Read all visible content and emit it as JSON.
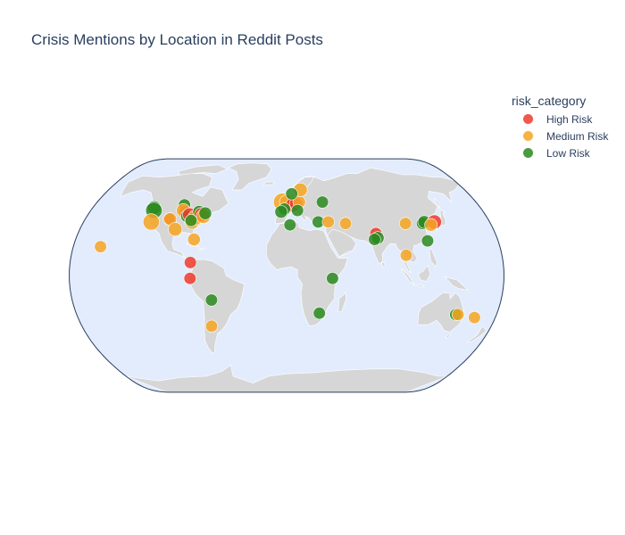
{
  "title": "Crisis Mentions by Location in Reddit Posts",
  "legend": {
    "title": "risk_category",
    "items": [
      {
        "label": "High Risk",
        "color": "#ef3b2c"
      },
      {
        "label": "Medium Risk",
        "color": "#f5a623"
      },
      {
        "label": "Low Risk",
        "color": "#2a8a1e"
      }
    ]
  },
  "colors": {
    "ocean": "#e3ecfd",
    "land": "#d6d6d6",
    "frame": "#2a3f5f"
  },
  "points": [
    {
      "lon": -123,
      "lat": 47,
      "risk": "Low Risk",
      "mentions": 8
    },
    {
      "lon": -122,
      "lat": 45,
      "risk": "Low Risk",
      "mentions": 14
    },
    {
      "lon": -120,
      "lat": 37,
      "risk": "Medium Risk",
      "mentions": 14
    },
    {
      "lon": -105,
      "lat": 39,
      "risk": "High Risk",
      "mentions": 5
    },
    {
      "lon": -104,
      "lat": 39,
      "risk": "Medium Risk",
      "mentions": 6
    },
    {
      "lon": -96,
      "lat": 49,
      "risk": "Low Risk",
      "mentions": 5
    },
    {
      "lon": -93,
      "lat": 44,
      "risk": "High Risk",
      "mentions": 6
    },
    {
      "lon": -97,
      "lat": 32,
      "risk": "Medium Risk",
      "mentions": 8
    },
    {
      "lon": -95,
      "lat": 45,
      "risk": "Medium Risk",
      "mentions": 8
    },
    {
      "lon": -90,
      "lat": 41,
      "risk": "Low Risk",
      "mentions": 5
    },
    {
      "lon": -88,
      "lat": 42,
      "risk": "High Risk",
      "mentions": 8
    },
    {
      "lon": -84,
      "lat": 37,
      "risk": "Medium Risk",
      "mentions": 9
    },
    {
      "lon": -82,
      "lat": 40,
      "risk": "Medium Risk",
      "mentions": 10
    },
    {
      "lon": -80,
      "lat": 44,
      "risk": "Low Risk",
      "mentions": 6
    },
    {
      "lon": -77,
      "lat": 42,
      "risk": "High Risk",
      "mentions": 9
    },
    {
      "lon": -75,
      "lat": 41,
      "risk": "Medium Risk",
      "mentions": 9
    },
    {
      "lon": -74,
      "lat": 43,
      "risk": "Low Risk",
      "mentions": 6
    },
    {
      "lon": -79,
      "lat": 25,
      "risk": "Medium Risk",
      "mentions": 6
    },
    {
      "lon": -85,
      "lat": 38,
      "risk": "Low Risk",
      "mentions": 5
    },
    {
      "lon": -80,
      "lat": 9,
      "risk": "High Risk",
      "mentions": 5
    },
    {
      "lon": -80,
      "lat": -2,
      "risk": "High Risk",
      "mentions": 5
    },
    {
      "lon": -63,
      "lat": -17,
      "risk": "Low Risk",
      "mentions": 5
    },
    {
      "lon": -66,
      "lat": -35,
      "risk": "Medium Risk",
      "mentions": 5
    },
    {
      "lon": -157,
      "lat": 20,
      "risk": "Medium Risk",
      "mentions": 5
    },
    {
      "lon": -4,
      "lat": 51,
      "risk": "Medium Risk",
      "mentions": 18
    },
    {
      "lon": 0,
      "lat": 51,
      "risk": "Medium Risk",
      "mentions": 9
    },
    {
      "lon": 6,
      "lat": 49,
      "risk": "High Risk",
      "mentions": 9
    },
    {
      "lon": 9,
      "lat": 50,
      "risk": "High Risk",
      "mentions": 7
    },
    {
      "lon": 12,
      "lat": 51,
      "risk": "Medium Risk",
      "mentions": 6
    },
    {
      "lon": 14,
      "lat": 60,
      "risk": "Medium Risk",
      "mentions": 8
    },
    {
      "lon": 5,
      "lat": 57,
      "risk": "Low Risk",
      "mentions": 5
    },
    {
      "lon": -2,
      "lat": 46,
      "risk": "Low Risk",
      "mentions": 5
    },
    {
      "lon": -5,
      "lat": 44,
      "risk": "Low Risk",
      "mentions": 6
    },
    {
      "lon": 10,
      "lat": 45,
      "risk": "Low Risk",
      "mentions": 5
    },
    {
      "lon": 3,
      "lat": 35,
      "risk": "Low Risk",
      "mentions": 5
    },
    {
      "lon": 34,
      "lat": 51,
      "risk": "Low Risk",
      "mentions": 5
    },
    {
      "lon": 28,
      "lat": 37,
      "risk": "Low Risk",
      "mentions": 5
    },
    {
      "lon": 37,
      "lat": 37,
      "risk": "Medium Risk",
      "mentions": 5
    },
    {
      "lon": 52,
      "lat": 36,
      "risk": "Medium Risk",
      "mentions": 5
    },
    {
      "lon": 77,
      "lat": 29,
      "risk": "High Risk",
      "mentions": 5
    },
    {
      "lon": 78,
      "lat": 26,
      "risk": "Low Risk",
      "mentions": 6
    },
    {
      "lon": 75,
      "lat": 25,
      "risk": "Low Risk",
      "mentions": 5
    },
    {
      "lon": 100,
      "lat": 14,
      "risk": "Medium Risk",
      "mentions": 5
    },
    {
      "lon": 105,
      "lat": 36,
      "risk": "Medium Risk",
      "mentions": 5
    },
    {
      "lon": 120,
      "lat": 36,
      "risk": "Low Risk",
      "mentions": 5
    },
    {
      "lon": 122,
      "lat": 37,
      "risk": "Low Risk",
      "mentions": 6
    },
    {
      "lon": 131,
      "lat": 37,
      "risk": "High Risk",
      "mentions": 9
    },
    {
      "lon": 127,
      "lat": 35,
      "risk": "Medium Risk",
      "mentions": 6
    },
    {
      "lon": 120,
      "lat": 24,
      "risk": "Low Risk",
      "mentions": 5
    },
    {
      "lon": 38,
      "lat": -2,
      "risk": "Low Risk",
      "mentions": 5
    },
    {
      "lon": 28,
      "lat": -26,
      "risk": "Low Risk",
      "mentions": 5
    },
    {
      "lon": 145,
      "lat": -27,
      "risk": "Low Risk",
      "mentions": 5
    },
    {
      "lon": 147,
      "lat": -27,
      "risk": "Medium Risk",
      "mentions": 5
    },
    {
      "lon": 162,
      "lat": -29,
      "risk": "Medium Risk",
      "mentions": 5
    }
  ]
}
